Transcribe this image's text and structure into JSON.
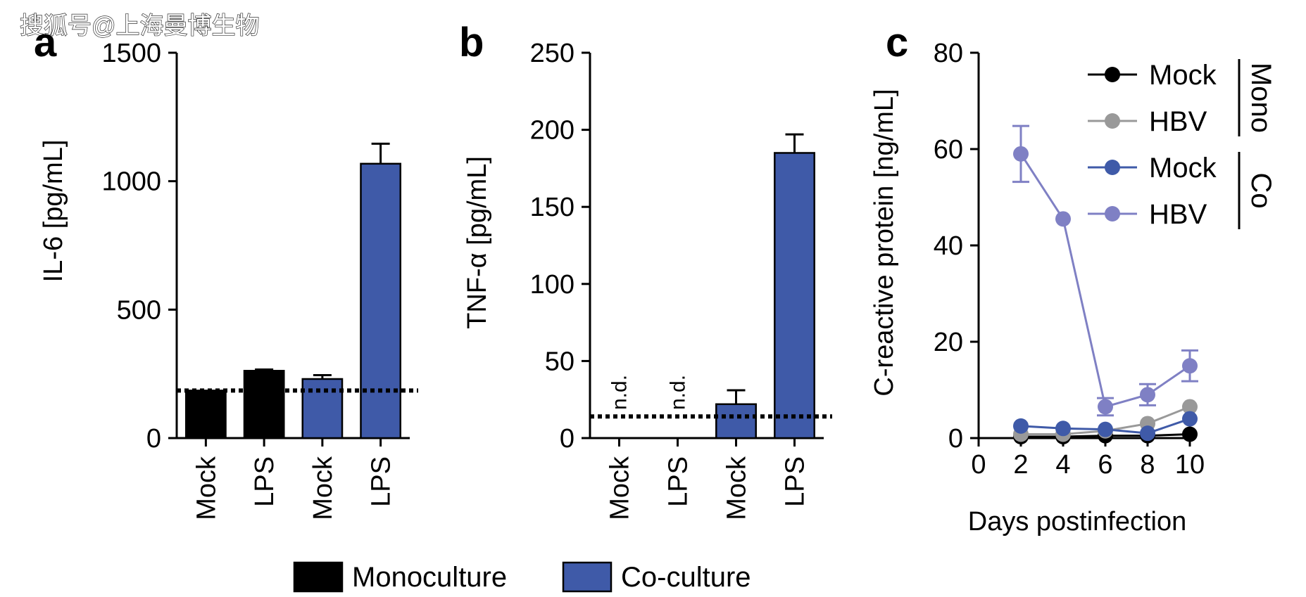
{
  "watermark": "搜狐号@上海曼博生物",
  "colors": {
    "mono": "#000000",
    "co": "#3f5aa8",
    "mono_hbv": "#999999",
    "co_hbv": "#7f80c4"
  },
  "legend_bottom": {
    "items": [
      {
        "label": "Monoculture",
        "color": "#000000"
      },
      {
        "label": "Co-culture",
        "color": "#3f5aa8"
      }
    ]
  },
  "chart_data": [
    {
      "panel": "a",
      "type": "bar",
      "ylabel": "IL-6 [pg/mL]",
      "ylim": [
        0,
        1500
      ],
      "yticks": [
        0,
        500,
        1000,
        1500
      ],
      "categories": [
        "Mock",
        "LPS",
        "Mock",
        "LPS"
      ],
      "groups": [
        "mono",
        "mono",
        "co",
        "co"
      ],
      "values": [
        185,
        262,
        230,
        1068
      ],
      "errors": [
        0,
        5,
        15,
        78
      ],
      "detection_limit": 185
    },
    {
      "panel": "b",
      "type": "bar",
      "ylabel": "TNF-α [pg/mL]",
      "ylim": [
        0,
        250
      ],
      "yticks": [
        0,
        50,
        100,
        150,
        200,
        250
      ],
      "categories": [
        "Mock",
        "LPS",
        "Mock",
        "LPS"
      ],
      "groups": [
        "mono",
        "mono",
        "co",
        "co"
      ],
      "values": [
        null,
        null,
        22,
        185
      ],
      "errors": [
        0,
        0,
        9,
        12
      ],
      "annotations": [
        "n.d.",
        "n.d.",
        "",
        ""
      ],
      "detection_limit": 14
    },
    {
      "panel": "c",
      "type": "line",
      "xlabel": "Days postinfection",
      "ylabel": "C-reactive protein [ng/mL]",
      "xlim": [
        0,
        10
      ],
      "ylim": [
        0,
        80
      ],
      "xticks": [
        0,
        2,
        4,
        6,
        8,
        10
      ],
      "yticks": [
        0,
        20,
        40,
        60,
        80
      ],
      "x": [
        2,
        4,
        6,
        8,
        10
      ],
      "series": [
        {
          "name": "Mock",
          "group": "Mono",
          "color": "#000000",
          "values": [
            0.3,
            0.3,
            0.5,
            0.5,
            0.8
          ],
          "errors": [
            0,
            0,
            0,
            0,
            0
          ]
        },
        {
          "name": "HBV",
          "group": "Mono",
          "color": "#999999",
          "values": [
            0.8,
            0.8,
            1.5,
            3,
            6.5
          ],
          "errors": [
            0,
            0,
            0,
            0,
            0
          ]
        },
        {
          "name": "Mock",
          "group": "Co",
          "color": "#3f5aa8",
          "values": [
            2.5,
            2,
            1.8,
            1,
            4
          ],
          "errors": [
            0,
            0,
            0,
            0,
            0
          ]
        },
        {
          "name": "HBV",
          "group": "Co",
          "color": "#7f80c4",
          "values": [
            59,
            45.5,
            6.5,
            9,
            15
          ],
          "errors": [
            5.8,
            0,
            1.8,
            2.2,
            3.2
          ]
        }
      ],
      "legend_groups": [
        "Mono",
        "Co"
      ]
    }
  ]
}
